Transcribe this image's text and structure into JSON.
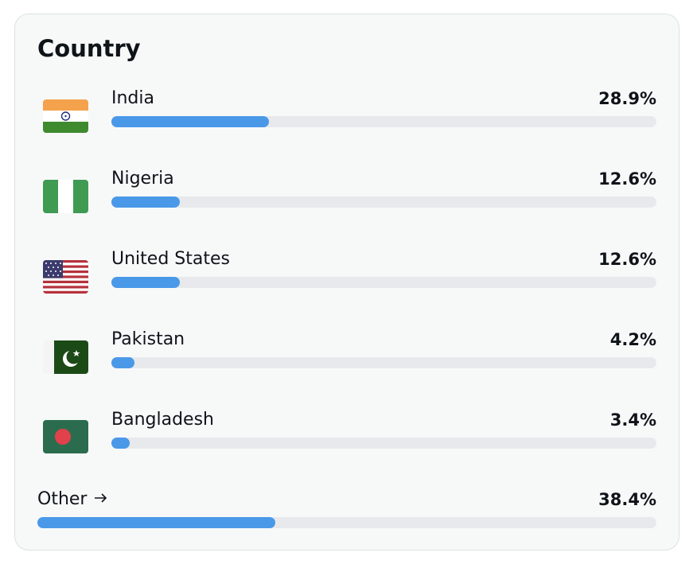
{
  "title": "Country",
  "rows": [
    {
      "name": "India",
      "value": 28.9,
      "value_label": "28.9%"
    },
    {
      "name": "Nigeria",
      "value": 12.6,
      "value_label": "12.6%"
    },
    {
      "name": "United States",
      "value": 12.6,
      "value_label": "12.6%"
    },
    {
      "name": "Pakistan",
      "value": 4.2,
      "value_label": "4.2%"
    },
    {
      "name": "Bangladesh",
      "value": 3.4,
      "value_label": "3.4%"
    }
  ],
  "other": {
    "name": "Other",
    "value": 38.4,
    "value_label": "38.4%"
  }
}
